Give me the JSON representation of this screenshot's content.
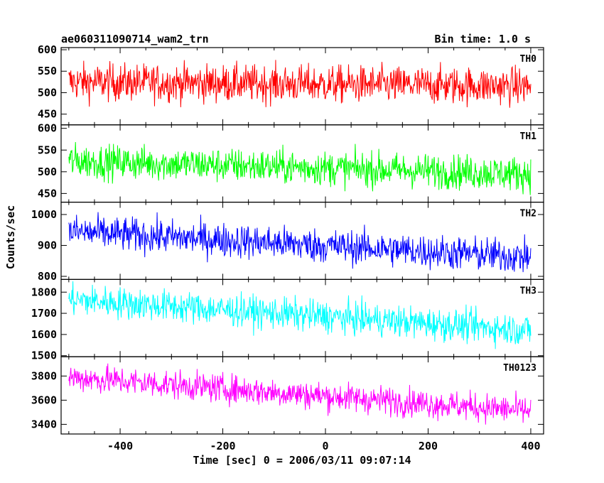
{
  "header": {
    "title": "ae060311090714_wam2_trn",
    "bin_time": "Bin time: 1.0 s"
  },
  "chart_data": {
    "type": "line",
    "title": "ae060311090714_wam2_trn",
    "xlabel": "Time [sec] 0 = 2006/03/11 09:07:14",
    "ylabel": "Counts/sec",
    "xlim": [
      -515,
      425
    ],
    "x_range": [
      -500,
      400
    ],
    "x_ticks": [
      -400,
      -200,
      0,
      200,
      400
    ],
    "grid": false,
    "panels": [
      {
        "name": "TH0",
        "color": "#ff0000",
        "ylim": [
          425,
          605
        ],
        "ticks": [
          450,
          500,
          550,
          600
        ],
        "start": 525,
        "end": 515,
        "noise": 22,
        "min": 455,
        "max": 605
      },
      {
        "name": "TH1",
        "color": "#00ff00",
        "ylim": [
          430,
          608
        ],
        "ticks": [
          450,
          500,
          550,
          600
        ],
        "start": 525,
        "end": 495,
        "noise": 20,
        "min": 445,
        "max": 600
      },
      {
        "name": "TH2",
        "color": "#0000ff",
        "ylim": [
          790,
          1040
        ],
        "ticks": [
          800,
          900,
          1000
        ],
        "start": 945,
        "end": 862,
        "noise": 28,
        "min": 800,
        "max": 1040
      },
      {
        "name": "TH3",
        "color": "#00ffff",
        "ylim": [
          1495,
          1860
        ],
        "ticks": [
          1500,
          1600,
          1700,
          1800
        ],
        "start": 1765,
        "end": 1620,
        "noise": 38,
        "min": 1520,
        "max": 1860
      },
      {
        "name": "TH0123",
        "color": "#ff00ff",
        "ylim": [
          3320,
          3960
        ],
        "ticks": [
          3400,
          3600,
          3800
        ],
        "start": 3790,
        "end": 3510,
        "noise": 60,
        "min": 3360,
        "max": 3940
      }
    ]
  }
}
